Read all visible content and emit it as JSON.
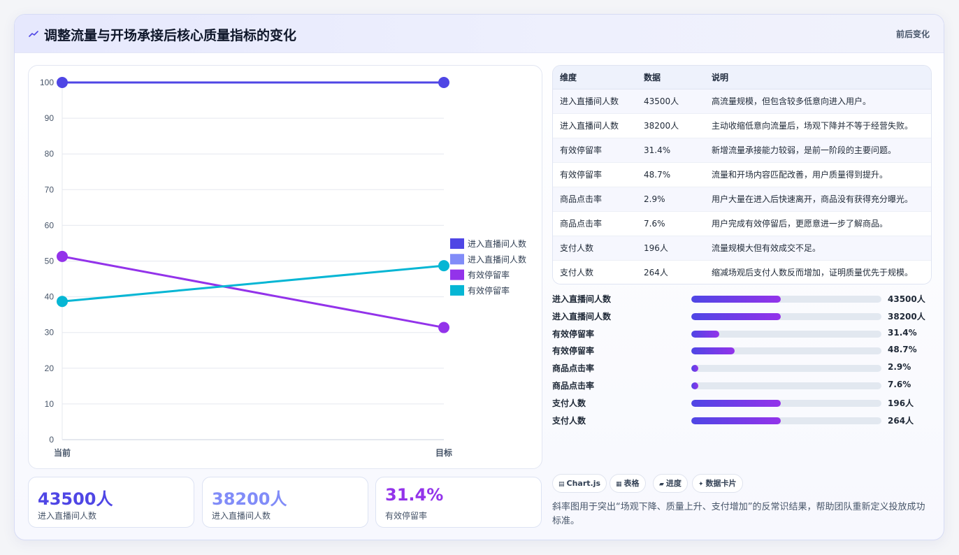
{
  "header": {
    "title": "调整流量与开场承接后核心质量指标的变化",
    "tag": "前后变化"
  },
  "chart_data": {
    "type": "line",
    "x": [
      "当前",
      "目标"
    ],
    "ylim": [
      0,
      100
    ],
    "yticks": [
      0,
      10,
      20,
      30,
      40,
      50,
      60,
      70,
      80,
      90,
      100
    ],
    "grid": true,
    "legend_position": "right",
    "series": [
      {
        "name": "进入直播间人数",
        "values": [
          100,
          100
        ],
        "color": "#4f46e5"
      },
      {
        "name": "进入直播间人数",
        "values": [
          null,
          null
        ],
        "color": "#818cf8"
      },
      {
        "name": "有效停留率",
        "values": [
          51.3,
          31.4
        ],
        "color": "#9333ea"
      },
      {
        "name": "有效停留率",
        "values": [
          38.7,
          48.7
        ],
        "color": "#06b6d4"
      }
    ]
  },
  "kpis": [
    {
      "value": "43500人",
      "label": "进入直播间人数",
      "color": "#4f46e5"
    },
    {
      "value": "38200人",
      "label": "进入直播间人数",
      "color": "#818cf8"
    },
    {
      "value": "31.4%",
      "label": "有效停留率",
      "color": "#9333ea"
    }
  ],
  "table": {
    "headers": [
      "维度",
      "数据",
      "说明"
    ],
    "rows": [
      [
        "进入直播间人数",
        "43500人",
        "高流量规模，但包含较多低意向进入用户。"
      ],
      [
        "进入直播间人数",
        "38200人",
        "主动收缩低意向流量后，场观下降并不等于经营失败。"
      ],
      [
        "有效停留率",
        "31.4%",
        "新增流量承接能力较弱，是前一阶段的主要问题。"
      ],
      [
        "有效停留率",
        "48.7%",
        "流量和开场内容匹配改善，用户质量得到提升。"
      ],
      [
        "商品点击率",
        "2.9%",
        "用户大量在进入后快速离开，商品没有获得充分曝光。"
      ],
      [
        "商品点击率",
        "7.6%",
        "用户完成有效停留后，更愿意进一步了解商品。"
      ],
      [
        "支付人数",
        "196人",
        "流量规模大但有效成交不足。"
      ],
      [
        "支付人数",
        "264人",
        "缩减场观后支付人数反而增加，证明质量优先于规模。"
      ]
    ]
  },
  "progress": [
    {
      "label": "进入直播间人数",
      "value": "43500人",
      "fraction": 0.47
    },
    {
      "label": "进入直播间人数",
      "value": "38200人",
      "fraction": 0.47
    },
    {
      "label": "有效停留率",
      "value": "31.4%",
      "fraction": 0.147
    },
    {
      "label": "有效停留率",
      "value": "48.7%",
      "fraction": 0.228
    },
    {
      "label": "商品点击率",
      "value": "2.9%",
      "fraction": 0.037
    },
    {
      "label": "商品点击率",
      "value": "7.6%",
      "fraction": 0.037
    },
    {
      "label": "支付人数",
      "value": "196人",
      "fraction": 0.47
    },
    {
      "label": "支付人数",
      "value": "264人",
      "fraction": 0.47
    }
  ],
  "chips": [
    {
      "icon": "▤",
      "icon_name": "chart-icon",
      "label": "Chart.js"
    },
    {
      "icon": "▦",
      "icon_name": "table-icon",
      "label": "表格"
    },
    {
      "icon": "▰",
      "icon_name": "progress-icon",
      "label": "进度"
    },
    {
      "icon": "✦",
      "icon_name": "sparkle-icon",
      "label": "数据卡片"
    }
  ],
  "description": "斜率图用于突出“场观下降、质量上升、支付增加”的反常识结果，帮助团队重新定义投放成功标准。"
}
